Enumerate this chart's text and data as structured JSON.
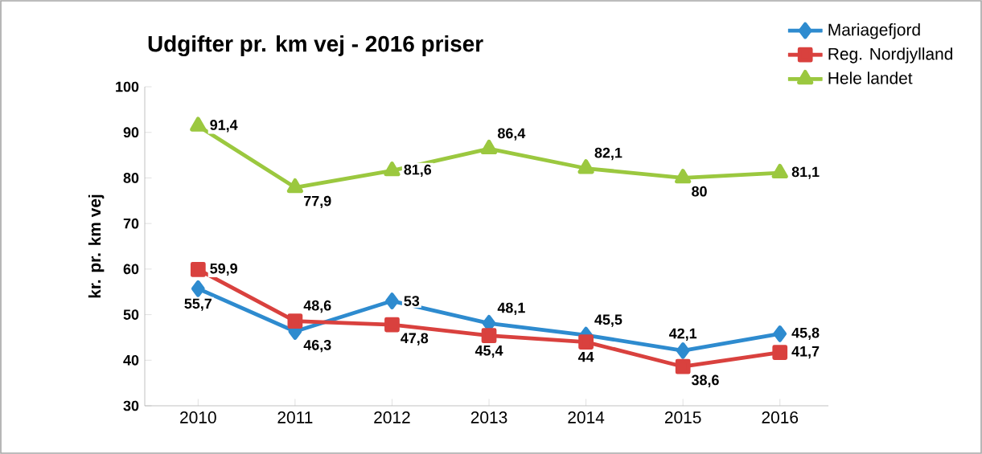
{
  "chart_data": {
    "type": "line",
    "title": "Udgifter pr. km vej - 2016  priser",
    "ylabel": "kr. pr. km vej",
    "categories": [
      "2010",
      "2011",
      "2012",
      "2013",
      "2014",
      "2015",
      "2016"
    ],
    "series": [
      {
        "name": "Mariagefjord",
        "color": "#2e8bcf",
        "marker": "diamond",
        "values": [
          55.7,
          46.3,
          53,
          48.1,
          45.5,
          42.1,
          45.8
        ],
        "value_labels": [
          "55,7",
          "46,3",
          "53",
          "48,1",
          "45,5",
          "42,1",
          "45,8"
        ]
      },
      {
        "name": "Reg. Nordjylland",
        "color": "#d9413e",
        "marker": "square",
        "values": [
          59.9,
          48.6,
          47.8,
          45.4,
          44,
          38.6,
          41.7
        ],
        "value_labels": [
          "59,9",
          "48,6",
          "47,8",
          "45,4",
          "44",
          "38,6",
          "41,7"
        ]
      },
      {
        "name": "Hele landet",
        "color": "#9bc83f",
        "marker": "triangle",
        "values": [
          91.4,
          77.9,
          81.6,
          86.4,
          82.1,
          80,
          81.1
        ],
        "value_labels": [
          "91,4",
          "77,9",
          "81,6",
          "86,4",
          "82,1",
          "80",
          "81,1"
        ]
      }
    ],
    "ylim": [
      30,
      100
    ],
    "yticks": [
      30,
      40,
      50,
      60,
      70,
      80,
      90,
      100
    ],
    "legend": "top right"
  }
}
